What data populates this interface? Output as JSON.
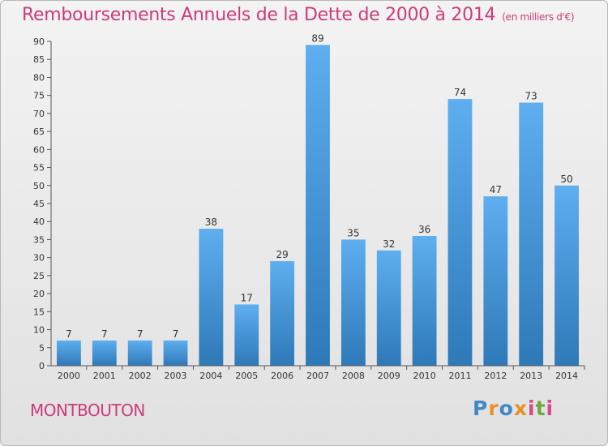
{
  "chart_data": {
    "type": "bar",
    "title": "Remboursements Annuels de la Dette de 2000 à 2014",
    "unit": "(en milliers d'€)",
    "xlabel": "",
    "ylabel": "",
    "categories": [
      "2000",
      "2001",
      "2002",
      "2003",
      "2004",
      "2005",
      "2006",
      "2007",
      "2008",
      "2009",
      "2010",
      "2011",
      "2012",
      "2013",
      "2014"
    ],
    "values": [
      7,
      7,
      7,
      7,
      38,
      17,
      29,
      89,
      35,
      32,
      36,
      74,
      47,
      73,
      50
    ],
    "ylim": [
      0,
      90
    ],
    "yticks": [
      0,
      5,
      10,
      15,
      20,
      25,
      30,
      35,
      40,
      45,
      50,
      55,
      60,
      65,
      70,
      75,
      80,
      85,
      90
    ],
    "grid": false,
    "bar_color": "#4a9ad8"
  },
  "commune": "MONTBOUTON",
  "brand": "Proxiti",
  "colors": {
    "title": "#cc3b7a",
    "bar_top": "#5eaef0",
    "bar_bottom": "#2e79b8"
  }
}
